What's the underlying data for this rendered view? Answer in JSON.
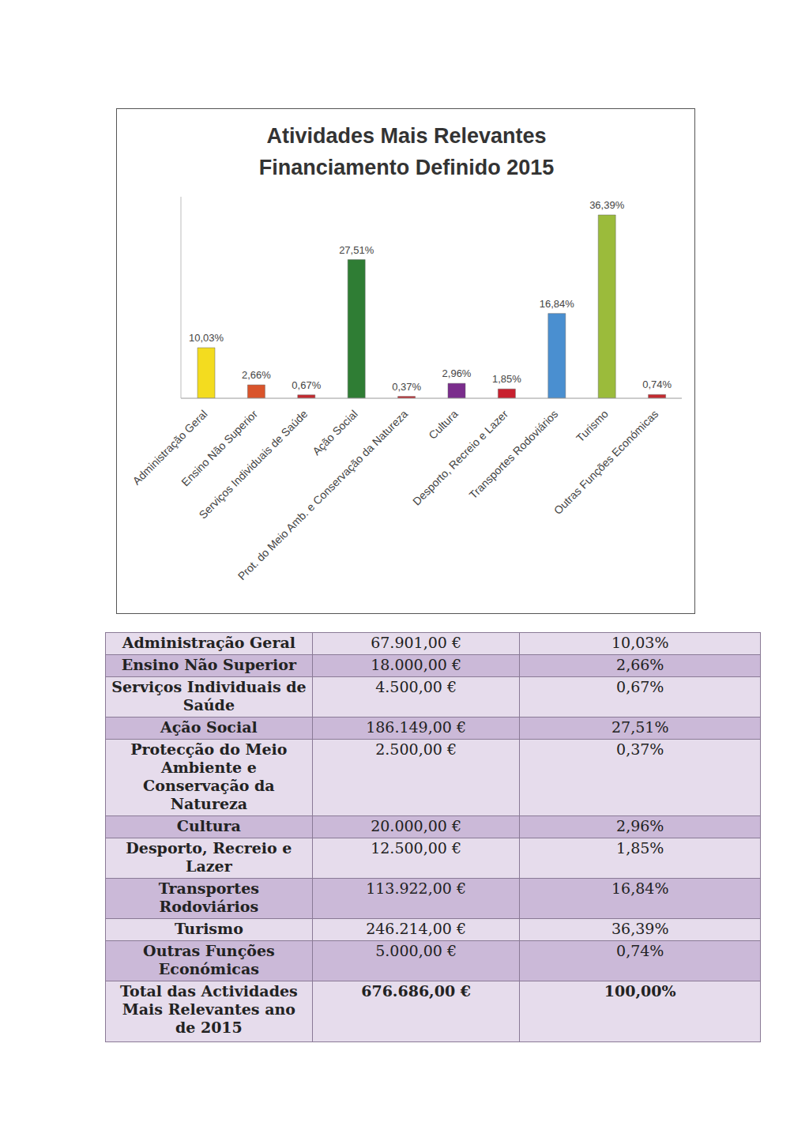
{
  "chart_data": {
    "type": "bar",
    "title": "Atividades Mais Relevantes",
    "subtitle": "Financiamento Definido 2015",
    "categories": [
      "Administração Geral",
      "Ensino Não Superior",
      "Serviços Individuais de Saúde",
      "Ação Social",
      "Prot. do Meio Amb. e Conservação da Natureza",
      "Cultura",
      "Desporto, Recreio e Lazer",
      "Transportes Rodoviários",
      "Turismo",
      "Outras Funções Económicas"
    ],
    "values": [
      10.03,
      2.66,
      0.67,
      27.51,
      0.37,
      2.96,
      1.85,
      16.84,
      36.39,
      0.74
    ],
    "value_labels": [
      "10,03%",
      "2,66%",
      "0,67%",
      "27,51%",
      "0,37%",
      "2,96%",
      "1,85%",
      "16,84%",
      "36,39%",
      "0,74%"
    ],
    "colors": [
      "#f3dc1f",
      "#d9542b",
      "#c42a30",
      "#2f7d34",
      "#c42a30",
      "#7a2d8c",
      "#c8202e",
      "#4a8fd0",
      "#9bbb3b",
      "#c42a30"
    ],
    "ylim": [
      0,
      40
    ],
    "data_labels": true,
    "tick_labels": "x",
    "grid": false
  },
  "table": {
    "rows": [
      [
        "Administração Geral",
        "67.901,00 €",
        "10,03%"
      ],
      [
        "Ensino Não Superior",
        "18.000,00 €",
        "2,66%"
      ],
      [
        "Serviços Individuais de Saúde",
        "4.500,00 €",
        "0,67%"
      ],
      [
        "Ação Social",
        "186.149,00 €",
        "27,51%"
      ],
      [
        "Protecção do Meio Ambiente e Conservação da Natureza",
        "2.500,00 €",
        "0,37%"
      ],
      [
        "Cultura",
        "20.000,00 €",
        "2,96%"
      ],
      [
        "Desporto, Recreio e Lazer",
        "12.500,00 €",
        "1,85%"
      ],
      [
        "Transportes Rodoviários",
        "113.922,00 €",
        "16,84%"
      ],
      [
        "Turismo",
        "246.214,00 €",
        "36,39%"
      ],
      [
        "Outras Funções Económicas",
        "5.000,00 €",
        "0,74%"
      ],
      [
        "Total das Actividades Mais Relevantes ano de 2015",
        "676.686,00 €",
        "100,00%"
      ]
    ]
  }
}
